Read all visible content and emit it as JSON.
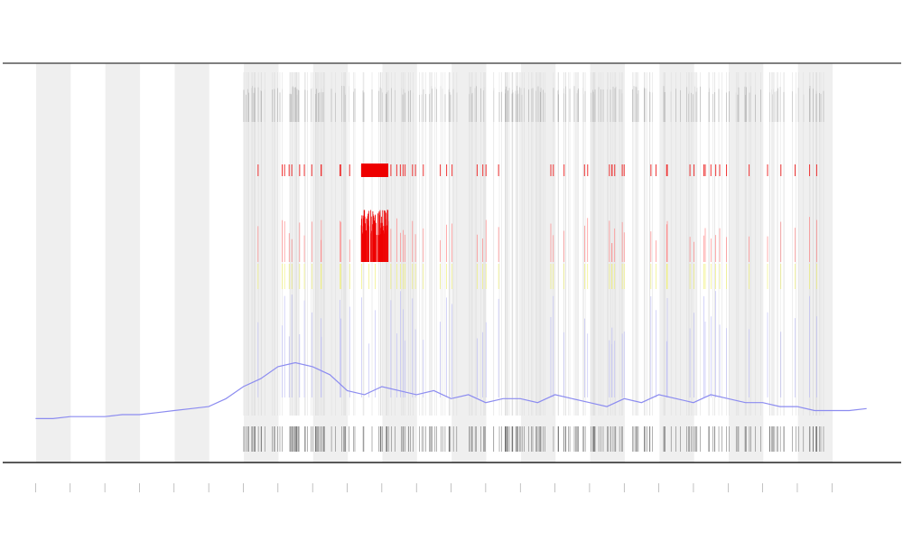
{
  "chart_data": {
    "type": "line",
    "x": [
      0,
      0.5,
      1,
      1.5,
      2,
      2.5,
      3,
      3.5,
      4,
      4.5,
      5,
      5.5,
      6,
      6.5,
      7,
      7.5,
      8,
      8.5,
      9,
      9.5,
      10,
      10.5,
      11,
      11.5,
      12,
      12.5,
      13,
      13.5,
      14,
      14.5,
      15,
      15.5,
      16,
      16.5,
      17,
      17.5,
      18,
      18.5,
      19,
      19.5,
      20,
      20.5,
      21,
      21.5,
      22,
      22.5,
      23,
      23.5,
      24
    ],
    "series": [
      {
        "color": "#8c8cf0",
        "values": [
          11,
          11,
          11.5,
          11.5,
          11.5,
          12,
          12,
          12.5,
          13,
          13.5,
          14,
          16,
          19,
          21,
          24,
          25,
          24,
          22,
          18,
          17,
          19,
          18,
          17,
          18,
          16,
          17,
          15,
          16,
          16,
          15,
          17,
          16,
          15,
          14,
          16,
          15,
          17,
          16,
          15,
          17,
          16,
          15,
          15,
          14,
          14,
          13,
          13,
          13,
          13.5
        ]
      }
    ],
    "xlim": [
      -0.95,
      25
    ],
    "ylim": [
      0,
      100
    ],
    "xticks": [
      0,
      1,
      2,
      3,
      4,
      5,
      6,
      7,
      8,
      9,
      10,
      11,
      12,
      13,
      14,
      15,
      16,
      17,
      18,
      19,
      20,
      21,
      22,
      23
    ]
  }
}
